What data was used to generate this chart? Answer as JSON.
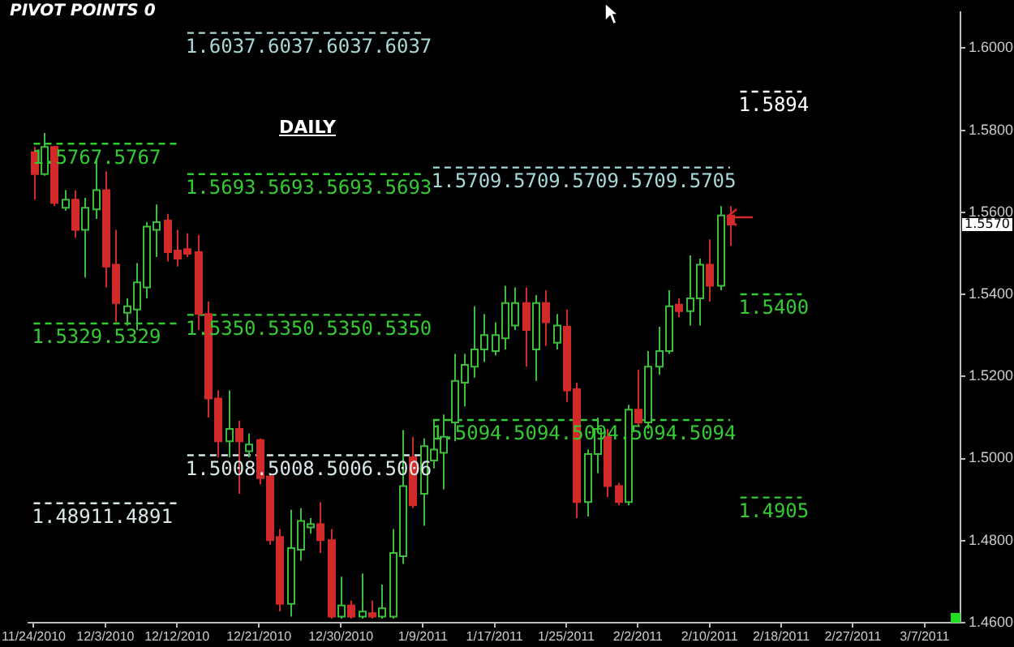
{
  "chart_data": {
    "type": "candlestick",
    "title": "PIVOT POINTS 0",
    "categories": [
      "11/24/2010",
      null,
      null,
      null,
      null,
      null,
      null,
      "12/3/2010",
      null,
      null,
      null,
      null,
      null,
      null,
      "12/12/2010",
      null,
      null,
      null,
      null,
      null,
      null,
      null,
      "12/21/2010",
      null,
      null,
      null,
      null,
      null,
      null,
      null,
      "12/30/2010",
      null,
      null,
      null,
      null,
      null,
      null,
      null,
      "1/9/2011",
      null,
      null,
      null,
      null,
      null,
      null,
      "1/17/2011",
      null,
      null,
      null,
      null,
      null,
      null,
      "1/25/2011",
      null,
      null,
      null,
      null,
      null,
      null,
      "2/2/2011",
      null,
      null,
      null,
      null,
      null,
      null,
      "2/10/2011",
      null,
      null,
      null,
      null,
      null,
      null,
      "2/18/2011",
      null,
      null,
      null,
      null,
      null,
      null,
      "2/27/2011",
      null,
      null,
      null,
      null,
      null,
      null,
      "3/7/2011",
      null,
      null,
      null
    ],
    "ohlc": [
      [
        1.5747,
        1.5759,
        1.5631,
        1.5693
      ],
      [
        1.5693,
        1.5793,
        1.5689,
        1.5759
      ],
      [
        1.5759,
        1.5762,
        1.5615,
        1.5623
      ],
      [
        1.5611,
        1.5654,
        1.5604,
        1.5631
      ],
      [
        1.5631,
        1.5654,
        1.5538,
        1.5557
      ],
      [
        1.5557,
        1.5635,
        1.5441,
        1.5611
      ],
      [
        1.5607,
        1.5731,
        1.5584,
        1.5654
      ],
      [
        1.5654,
        1.57,
        1.5417,
        1.5468
      ],
      [
        1.5472,
        1.5557,
        1.5332,
        1.5379
      ],
      [
        1.5355,
        1.539,
        1.5324,
        1.5371
      ],
      [
        1.5363,
        1.5476,
        1.5313,
        1.5429
      ],
      [
        1.5417,
        1.5576,
        1.539,
        1.5565
      ],
      [
        1.5557,
        1.5619,
        1.5491,
        1.5576
      ],
      [
        1.558,
        1.5596,
        1.548,
        1.5503
      ],
      [
        1.5507,
        1.5557,
        1.5468,
        1.5487
      ],
      [
        1.551,
        1.5549,
        1.5491,
        1.5499
      ],
      [
        1.5503,
        1.5545,
        1.5313,
        1.5352
      ],
      [
        1.5352,
        1.5383,
        1.51,
        1.5146
      ],
      [
        1.5146,
        1.5166,
        1.5003,
        1.5042
      ],
      [
        1.5042,
        1.5166,
        1.5003,
        1.5072
      ],
      [
        1.5072,
        1.5092,
        1.4914,
        1.5042
      ],
      [
        1.5018,
        1.5061,
        1.5003,
        1.5034
      ],
      [
        1.5045,
        1.5049,
        1.4937,
        1.4952
      ],
      [
        1.4956,
        1.4964,
        1.479,
        1.4801
      ],
      [
        1.4809,
        1.4828,
        1.4627,
        1.4646
      ],
      [
        1.4646,
        1.4875,
        1.4615,
        1.4782
      ],
      [
        1.4778,
        1.4879,
        1.4751,
        1.4848
      ],
      [
        1.4832,
        1.4855,
        1.4817,
        1.484
      ],
      [
        1.484,
        1.4894,
        1.477,
        1.4801
      ],
      [
        1.4801,
        1.4828,
        1.461,
        1.4615
      ],
      [
        1.4615,
        1.4712,
        1.461,
        1.4642
      ],
      [
        1.4642,
        1.4654,
        1.461,
        1.4615
      ],
      [
        1.4615,
        1.472,
        1.461,
        1.4627
      ],
      [
        1.4623,
        1.4654,
        1.461,
        1.4615
      ],
      [
        1.4615,
        1.4693,
        1.461,
        1.4635
      ],
      [
        1.4615,
        1.4828,
        1.461,
        1.477
      ],
      [
        1.4762,
        1.5069,
        1.4743,
        1.4933
      ],
      [
        1.5003,
        1.5053,
        1.4879,
        1.4886
      ],
      [
        1.4914,
        1.5049,
        1.4836,
        1.503
      ],
      [
        1.4995,
        1.5092,
        1.4976,
        1.5022
      ],
      [
        1.5014,
        1.5107,
        1.4925,
        1.5053
      ],
      [
        1.5088,
        1.5255,
        1.5042,
        1.5189
      ],
      [
        1.5185,
        1.5255,
        1.5127,
        1.5228
      ],
      [
        1.5224,
        1.5371,
        1.5197,
        1.5266
      ],
      [
        1.5266,
        1.5352,
        1.5235,
        1.5301
      ],
      [
        1.5262,
        1.5332,
        1.5251,
        1.5301
      ],
      [
        1.5293,
        1.5421,
        1.5266,
        1.5379
      ],
      [
        1.5324,
        1.5417,
        1.5313,
        1.5379
      ],
      [
        1.5379,
        1.5417,
        1.5224,
        1.5313
      ],
      [
        1.5266,
        1.5398,
        1.5189,
        1.5379
      ],
      [
        1.5379,
        1.541,
        1.5274,
        1.5332
      ],
      [
        1.5282,
        1.5352,
        1.5266,
        1.5324
      ],
      [
        1.5321,
        1.5363,
        1.5138,
        1.5166
      ],
      [
        1.5169,
        1.5185,
        1.4855,
        1.4894
      ],
      [
        1.4894,
        1.5022,
        1.4859,
        1.5011
      ],
      [
        1.5011,
        1.51,
        1.4964,
        1.5072
      ],
      [
        1.5053,
        1.5072,
        1.4906,
        1.4933
      ],
      [
        1.4933,
        1.4941,
        1.4886,
        1.4894
      ],
      [
        1.4894,
        1.5131,
        1.4886,
        1.5119
      ],
      [
        1.5119,
        1.5216,
        1.508,
        1.5088
      ],
      [
        1.5088,
        1.5262,
        1.5072,
        1.5224
      ],
      [
        1.5224,
        1.5321,
        1.5204,
        1.5262
      ],
      [
        1.5262,
        1.541,
        1.5255,
        1.5371
      ],
      [
        1.5375,
        1.539,
        1.5344,
        1.5359
      ],
      [
        1.5359,
        1.5495,
        1.5324,
        1.539
      ],
      [
        1.539,
        1.5487,
        1.5324,
        1.5472
      ],
      [
        1.5472,
        1.5534,
        1.5383,
        1.5421
      ],
      [
        1.5421,
        1.5615,
        1.541,
        1.5592
      ],
      [
        1.5592,
        1.5615,
        1.5518,
        1.557
      ],
      null,
      null,
      null,
      null,
      null,
      null,
      null,
      null,
      null,
      null,
      null,
      null,
      null,
      null,
      null,
      null,
      null,
      null,
      null,
      null,
      null,
      null
    ],
    "series": [
      {
        "type": "line",
        "name": "1.5767.5767",
        "color": "#33cc33",
        "values": [
          1.5767,
          1.5767,
          1.5767,
          1.5767,
          1.5767,
          1.5767,
          1.5767,
          1.5767,
          1.5767,
          1.5767,
          1.5767,
          1.5767,
          1.5767,
          1.5767,
          1.5767,
          null,
          null,
          null,
          null,
          null,
          null,
          null,
          null,
          null,
          null,
          null,
          null,
          null,
          null,
          null,
          null,
          null,
          null,
          null,
          null,
          null,
          null,
          null,
          null,
          null,
          null,
          null,
          null,
          null,
          null,
          null,
          null,
          null,
          null,
          null,
          null,
          null,
          null,
          null,
          null,
          null,
          null,
          null,
          null,
          null,
          null,
          null,
          null,
          null,
          null,
          null,
          null,
          null,
          null,
          null,
          null,
          null,
          null,
          null,
          null,
          null,
          null,
          null,
          null,
          null,
          null,
          null,
          null,
          null,
          null,
          null,
          null,
          null,
          null,
          null,
          null
        ]
      },
      {
        "type": "line",
        "name": "1.5329.5329",
        "color": "#33cc33",
        "values": [
          1.5329,
          1.5329,
          1.5329,
          1.5329,
          1.5329,
          1.5329,
          1.5329,
          1.5329,
          1.5329,
          1.5329,
          1.5329,
          1.5329,
          1.5329,
          1.5329,
          1.5329,
          null,
          null,
          null,
          null,
          null,
          null,
          null,
          null,
          null,
          null,
          null,
          null,
          null,
          null,
          null,
          null,
          null,
          null,
          null,
          null,
          null,
          null,
          null,
          null,
          null,
          null,
          null,
          null,
          null,
          null,
          null,
          null,
          null,
          null,
          null,
          null,
          null,
          null,
          null,
          null,
          null,
          null,
          null,
          null,
          null,
          null,
          null,
          null,
          null,
          null,
          null,
          null,
          null,
          null,
          null,
          null,
          null,
          null,
          null,
          null,
          null,
          null,
          null,
          null,
          null,
          null,
          null,
          null,
          null,
          null,
          null,
          null,
          null,
          null,
          null,
          null
        ]
      },
      {
        "type": "line",
        "name": "1.48911.4891",
        "color": "#d8e8e8",
        "values": [
          1.4891,
          1.4891,
          1.4891,
          1.4891,
          1.4891,
          1.4891,
          1.4891,
          1.4891,
          1.4891,
          1.4891,
          1.4891,
          1.4891,
          1.4891,
          1.4891,
          1.4891,
          null,
          null,
          null,
          null,
          null,
          null,
          null,
          null,
          null,
          null,
          null,
          null,
          null,
          null,
          null,
          null,
          null,
          null,
          null,
          null,
          null,
          null,
          null,
          null,
          null,
          null,
          null,
          null,
          null,
          null,
          null,
          null,
          null,
          null,
          null,
          null,
          null,
          null,
          null,
          null,
          null,
          null,
          null,
          null,
          null,
          null,
          null,
          null,
          null,
          null,
          null,
          null,
          null,
          null,
          null,
          null,
          null,
          null,
          null,
          null,
          null,
          null,
          null,
          null,
          null,
          null,
          null,
          null,
          null,
          null,
          null,
          null,
          null,
          null,
          null,
          null
        ]
      },
      {
        "type": "line",
        "name": "1.6037.6037.6037.6037",
        "color": "#a8d8d8",
        "values": [
          null,
          null,
          null,
          null,
          null,
          null,
          null,
          null,
          null,
          null,
          null,
          null,
          null,
          null,
          null,
          1.6037,
          1.6037,
          1.6037,
          1.6037,
          1.6037,
          1.6037,
          1.6037,
          1.6037,
          1.6037,
          1.6037,
          1.6037,
          1.6037,
          1.6037,
          1.6037,
          1.6037,
          1.6037,
          1.6037,
          1.6037,
          1.6037,
          1.6037,
          1.6037,
          1.6037,
          1.6037,
          1.6037,
          null,
          null,
          null,
          null,
          null,
          null,
          null,
          null,
          null,
          null,
          null,
          null,
          null,
          null,
          null,
          null,
          null,
          null,
          null,
          null,
          null,
          null,
          null,
          null,
          null,
          null,
          null,
          null,
          null,
          null,
          null,
          null,
          null,
          null,
          null,
          null,
          null,
          null,
          null,
          null,
          null,
          null,
          null,
          null,
          null,
          null,
          null,
          null,
          null,
          null,
          null,
          null
        ]
      },
      {
        "type": "line",
        "name": "1.5693.5693.5693.5693",
        "color": "#33cc33",
        "values": [
          null,
          null,
          null,
          null,
          null,
          null,
          null,
          null,
          null,
          null,
          null,
          null,
          null,
          null,
          null,
          1.5693,
          1.5693,
          1.5693,
          1.5693,
          1.5693,
          1.5693,
          1.5693,
          1.5693,
          1.5693,
          1.5693,
          1.5693,
          1.5693,
          1.5693,
          1.5693,
          1.5693,
          1.5693,
          1.5693,
          1.5693,
          1.5693,
          1.5693,
          1.5693,
          1.5693,
          1.5693,
          1.5693,
          null,
          null,
          null,
          null,
          null,
          null,
          null,
          null,
          null,
          null,
          null,
          null,
          null,
          null,
          null,
          null,
          null,
          null,
          null,
          null,
          null,
          null,
          null,
          null,
          null,
          null,
          null,
          null,
          null,
          null,
          null,
          null,
          null,
          null,
          null,
          null,
          null,
          null,
          null,
          null,
          null,
          null,
          null,
          null,
          null,
          null,
          null,
          null,
          null,
          null,
          null,
          null
        ]
      },
      {
        "type": "line",
        "name": "1.5350.5350.5350.5350",
        "color": "#33cc33",
        "values": [
          null,
          null,
          null,
          null,
          null,
          null,
          null,
          null,
          null,
          null,
          null,
          null,
          null,
          null,
          null,
          1.535,
          1.535,
          1.535,
          1.535,
          1.535,
          1.535,
          1.535,
          1.535,
          1.535,
          1.535,
          1.535,
          1.535,
          1.535,
          1.535,
          1.535,
          1.535,
          1.535,
          1.535,
          1.535,
          1.535,
          1.535,
          1.535,
          1.535,
          1.535,
          null,
          null,
          null,
          null,
          null,
          null,
          null,
          null,
          null,
          null,
          null,
          null,
          null,
          null,
          null,
          null,
          null,
          null,
          null,
          null,
          null,
          null,
          null,
          null,
          null,
          null,
          null,
          null,
          null,
          null,
          null,
          null,
          null,
          null,
          null,
          null,
          null,
          null,
          null,
          null,
          null,
          null,
          null,
          null,
          null,
          null,
          null,
          null,
          null,
          null,
          null,
          null
        ]
      },
      {
        "type": "line",
        "name": "1.5008.5008.5006.5006",
        "color": "#d8e8e8",
        "values": [
          null,
          null,
          null,
          null,
          null,
          null,
          null,
          null,
          null,
          null,
          null,
          null,
          null,
          null,
          null,
          1.5008,
          1.5008,
          1.5008,
          1.5008,
          1.5008,
          1.5008,
          1.5008,
          1.5008,
          1.5008,
          1.5008,
          1.5008,
          1.5008,
          1.5008,
          1.5008,
          1.5008,
          1.5008,
          1.5008,
          1.5008,
          1.5008,
          1.5008,
          1.5008,
          1.5008,
          1.5008,
          1.5008,
          null,
          null,
          null,
          null,
          null,
          null,
          null,
          null,
          null,
          null,
          null,
          null,
          null,
          null,
          null,
          null,
          null,
          null,
          null,
          null,
          null,
          null,
          null,
          null,
          null,
          null,
          null,
          null,
          null,
          null,
          null,
          null,
          null,
          null,
          null,
          null,
          null,
          null,
          null,
          null,
          null,
          null,
          null,
          null,
          null,
          null,
          null,
          null,
          null,
          null,
          null,
          null
        ]
      },
      {
        "type": "line",
        "name": "1.5709.5709.5709.5709.5705",
        "color": "#a8d8d8",
        "values": [
          null,
          null,
          null,
          null,
          null,
          null,
          null,
          null,
          null,
          null,
          null,
          null,
          null,
          null,
          null,
          null,
          null,
          null,
          null,
          null,
          null,
          null,
          null,
          null,
          null,
          null,
          null,
          null,
          null,
          null,
          null,
          null,
          null,
          null,
          null,
          null,
          null,
          null,
          null,
          1.5709,
          1.5709,
          1.5709,
          1.5709,
          1.5709,
          1.5709,
          1.5709,
          1.5709,
          1.5709,
          1.5709,
          1.5709,
          1.5709,
          1.5709,
          1.5709,
          1.5709,
          1.5709,
          1.5709,
          1.5709,
          1.5709,
          1.5709,
          1.5709,
          1.5709,
          1.5709,
          1.5709,
          1.5709,
          1.5709,
          1.5709,
          1.5709,
          1.5709,
          1.5709,
          null,
          null,
          null,
          null,
          null,
          null,
          null,
          null,
          null,
          null,
          null,
          null,
          null,
          null,
          null,
          null,
          null,
          null,
          null,
          null,
          null,
          null
        ]
      },
      {
        "type": "line",
        "name": "1.5094.5094.5094.5094.5094",
        "color": "#33cc33",
        "values": [
          null,
          null,
          null,
          null,
          null,
          null,
          null,
          null,
          null,
          null,
          null,
          null,
          null,
          null,
          null,
          null,
          null,
          null,
          null,
          null,
          null,
          null,
          null,
          null,
          null,
          null,
          null,
          null,
          null,
          null,
          null,
          null,
          null,
          null,
          null,
          null,
          null,
          null,
          null,
          1.5094,
          1.5094,
          1.5094,
          1.5094,
          1.5094,
          1.5094,
          1.5094,
          1.5094,
          1.5094,
          1.5094,
          1.5094,
          1.5094,
          1.5094,
          1.5094,
          1.5094,
          1.5094,
          1.5094,
          1.5094,
          1.5094,
          1.5094,
          1.5094,
          1.5094,
          1.5094,
          1.5094,
          1.5094,
          1.5094,
          1.5094,
          1.5094,
          1.5094,
          1.5094,
          null,
          null,
          null,
          null,
          null,
          null,
          null,
          null,
          null,
          null,
          null,
          null,
          null,
          null,
          null,
          null,
          null,
          null,
          null,
          null,
          null,
          null
        ]
      },
      {
        "type": "line",
        "name": "1.5894",
        "color": "#ffffff",
        "values": [
          null,
          null,
          null,
          null,
          null,
          null,
          null,
          null,
          null,
          null,
          null,
          null,
          null,
          null,
          null,
          null,
          null,
          null,
          null,
          null,
          null,
          null,
          null,
          null,
          null,
          null,
          null,
          null,
          null,
          null,
          null,
          null,
          null,
          null,
          null,
          null,
          null,
          null,
          null,
          null,
          null,
          null,
          null,
          null,
          null,
          null,
          null,
          null,
          null,
          null,
          null,
          null,
          null,
          null,
          null,
          null,
          null,
          null,
          null,
          null,
          null,
          null,
          null,
          null,
          null,
          null,
          null,
          null,
          null,
          1.5894,
          1.5894,
          1.5894,
          1.5894,
          1.5894,
          1.5894,
          1.5894,
          null,
          null,
          null,
          null,
          null,
          null,
          null,
          null,
          null,
          null,
          null,
          null,
          null,
          null,
          null
        ]
      },
      {
        "type": "line",
        "name": "1.5400",
        "color": "#33cc33",
        "values": [
          null,
          null,
          null,
          null,
          null,
          null,
          null,
          null,
          null,
          null,
          null,
          null,
          null,
          null,
          null,
          null,
          null,
          null,
          null,
          null,
          null,
          null,
          null,
          null,
          null,
          null,
          null,
          null,
          null,
          null,
          null,
          null,
          null,
          null,
          null,
          null,
          null,
          null,
          null,
          null,
          null,
          null,
          null,
          null,
          null,
          null,
          null,
          null,
          null,
          null,
          null,
          null,
          null,
          null,
          null,
          null,
          null,
          null,
          null,
          null,
          null,
          null,
          null,
          null,
          null,
          null,
          null,
          null,
          null,
          1.54,
          1.54,
          1.54,
          1.54,
          1.54,
          1.54,
          1.54,
          null,
          null,
          null,
          null,
          null,
          null,
          null,
          null,
          null,
          null,
          null,
          null,
          null,
          null,
          null
        ]
      },
      {
        "type": "line",
        "name": "1.4905",
        "color": "#33cc33",
        "values": [
          null,
          null,
          null,
          null,
          null,
          null,
          null,
          null,
          null,
          null,
          null,
          null,
          null,
          null,
          null,
          null,
          null,
          null,
          null,
          null,
          null,
          null,
          null,
          null,
          null,
          null,
          null,
          null,
          null,
          null,
          null,
          null,
          null,
          null,
          null,
          null,
          null,
          null,
          null,
          null,
          null,
          null,
          null,
          null,
          null,
          null,
          null,
          null,
          null,
          null,
          null,
          null,
          null,
          null,
          null,
          null,
          null,
          null,
          null,
          null,
          null,
          null,
          null,
          null,
          null,
          null,
          null,
          null,
          null,
          1.4905,
          1.4905,
          1.4905,
          1.4905,
          1.4905,
          1.4905,
          1.4905,
          null,
          null,
          null,
          null,
          null,
          null,
          null,
          null,
          null,
          null,
          null,
          null,
          null,
          null,
          null
        ]
      }
    ],
    "ylim": [
      1.46,
      1.6088
    ],
    "yticks": [
      {
        "value": 1.46,
        "label": "1.4600"
      },
      {
        "value": 1.48,
        "label": "1.4800"
      },
      {
        "value": 1.5,
        "label": "1.5000"
      },
      {
        "value": 1.52,
        "label": "1.5200"
      },
      {
        "value": 1.54,
        "label": "1.5400"
      },
      {
        "value": 1.56,
        "label": "1.5600"
      },
      {
        "value": 1.58,
        "label": "1.5800"
      },
      {
        "value": 1.6,
        "label": "1.6000"
      }
    ],
    "annotations": [
      "DAILY",
      "1.5570"
    ],
    "line_style": "dashed",
    "marker": "none",
    "grid": false,
    "legend": false
  }
}
